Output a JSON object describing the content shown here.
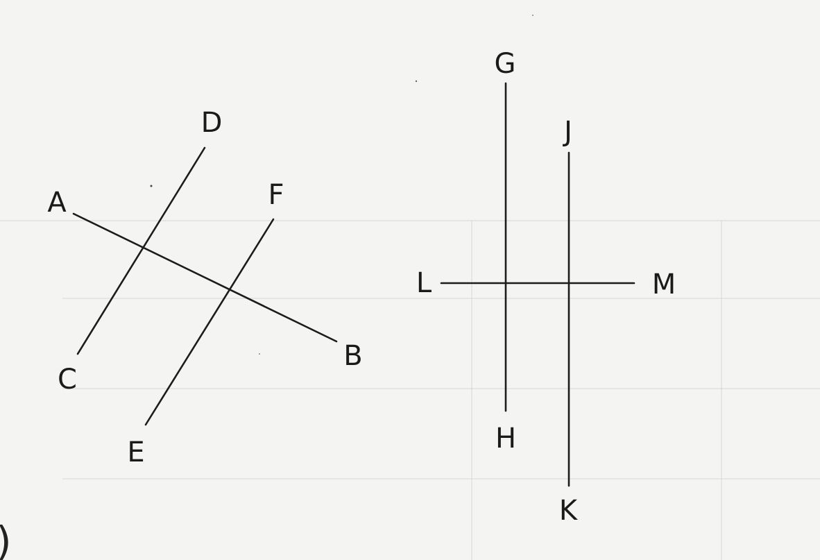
{
  "diagram": {
    "left_figure": {
      "lines": [
        {
          "name": "AB",
          "start": "A",
          "end": "B"
        },
        {
          "name": "CD",
          "start": "C",
          "end": "D"
        },
        {
          "name": "EF",
          "start": "E",
          "end": "F"
        }
      ],
      "labels": {
        "A": "A",
        "B": "B",
        "C": "C",
        "D": "D",
        "E": "E",
        "F": "F"
      }
    },
    "right_figure": {
      "lines": [
        {
          "name": "GH",
          "start": "G",
          "end": "H"
        },
        {
          "name": "JK",
          "start": "J",
          "end": "K"
        },
        {
          "name": "LM",
          "start": "L",
          "end": "M"
        }
      ],
      "labels": {
        "G": "G",
        "H": "H",
        "J": "J",
        "K": "K",
        "L": "L",
        "M": "M"
      }
    },
    "corner_mark": ")"
  }
}
